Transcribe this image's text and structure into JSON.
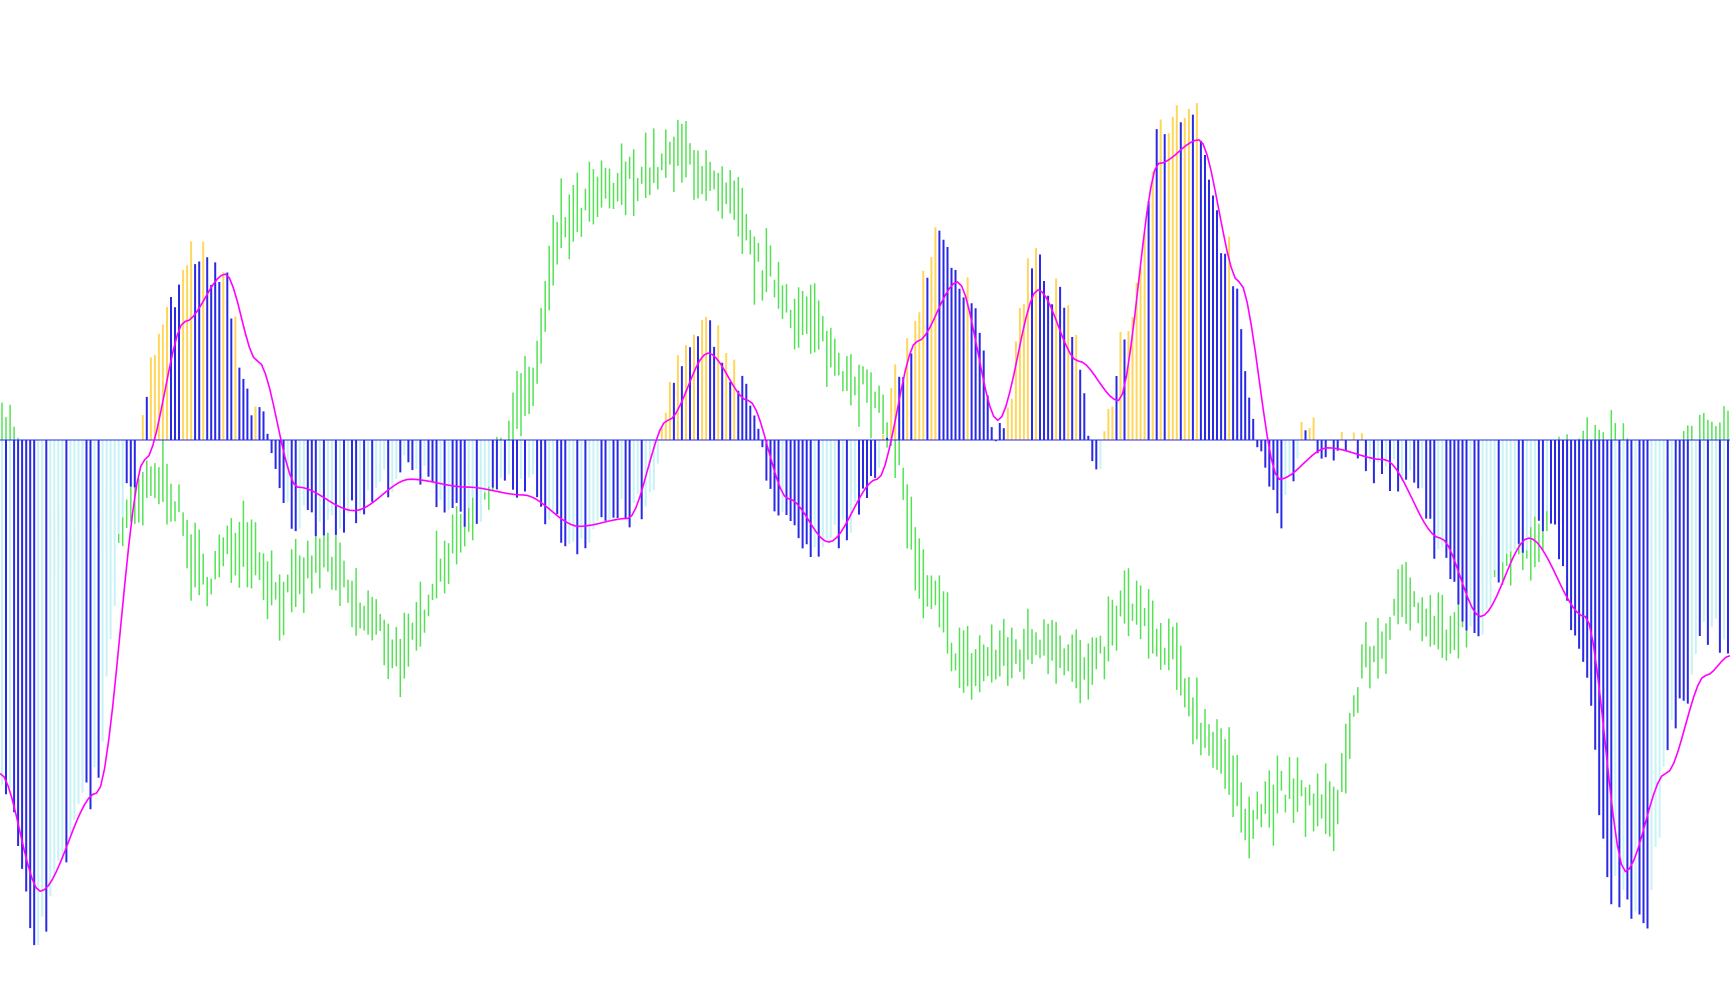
{
  "colors": {
    "background": "#ffffff",
    "hist_rising_positive": "#ffd65c",
    "hist_falling_positive": "#2a2ae6",
    "hist_rising_negative": "#c8f2f5",
    "hist_falling_negative": "#2a2ae6",
    "signal_line": "#ff00ff",
    "price_bars": "#54e254",
    "zero_line": "#2a2ae6"
  },
  "chart_data": {
    "type": "bar",
    "title": "",
    "xlabel": "",
    "ylabel": "",
    "grid": false,
    "legend": "none",
    "bar_count": 430,
    "ylim": [
      -1.3,
      1.0
    ],
    "zero_value": 0,
    "histogram_keypoints": [
      [
        0,
        -0.85
      ],
      [
        8,
        -1.25
      ],
      [
        22,
        -0.9
      ],
      [
        32,
        -0.1
      ],
      [
        40,
        0.3
      ],
      [
        48,
        0.48
      ],
      [
        55,
        0.4
      ],
      [
        62,
        0.1
      ],
      [
        72,
        -0.2
      ],
      [
        85,
        -0.2
      ],
      [
        100,
        -0.08
      ],
      [
        115,
        -0.18
      ],
      [
        130,
        -0.12
      ],
      [
        142,
        -0.26
      ],
      [
        150,
        -0.2
      ],
      [
        160,
        -0.18
      ],
      [
        168,
        0.2
      ],
      [
        176,
        0.28
      ],
      [
        184,
        0.15
      ],
      [
        192,
        -0.15
      ],
      [
        200,
        -0.3
      ],
      [
        208,
        -0.25
      ],
      [
        216,
        -0.1
      ],
      [
        224,
        0.2
      ],
      [
        232,
        0.5
      ],
      [
        240,
        0.4
      ],
      [
        248,
        0.0
      ],
      [
        256,
        0.45
      ],
      [
        264,
        0.35
      ],
      [
        272,
        -0.05
      ],
      [
        280,
        0.3
      ],
      [
        288,
        0.8
      ],
      [
        296,
        0.85
      ],
      [
        304,
        0.5
      ],
      [
        312,
        0.0
      ],
      [
        318,
        -0.2
      ],
      [
        324,
        0.05
      ],
      [
        330,
        -0.03
      ],
      [
        336,
        0.0
      ],
      [
        342,
        -0.1
      ],
      [
        350,
        -0.08
      ],
      [
        358,
        -0.3
      ],
      [
        366,
        -0.52
      ],
      [
        374,
        -0.3
      ],
      [
        384,
        -0.2
      ],
      [
        392,
        -0.5
      ],
      [
        400,
        -1.15
      ],
      [
        408,
        -1.25
      ],
      [
        416,
        -0.7
      ],
      [
        424,
        -0.5
      ],
      [
        430,
        -0.5
      ]
    ],
    "signal_keypoints": [
      [
        0,
        -0.85
      ],
      [
        10,
        -1.15
      ],
      [
        24,
        -0.9
      ],
      [
        36,
        -0.05
      ],
      [
        46,
        0.3
      ],
      [
        56,
        0.42
      ],
      [
        64,
        0.2
      ],
      [
        74,
        -0.12
      ],
      [
        88,
        -0.18
      ],
      [
        102,
        -0.1
      ],
      [
        116,
        -0.12
      ],
      [
        130,
        -0.14
      ],
      [
        144,
        -0.22
      ],
      [
        156,
        -0.2
      ],
      [
        166,
        0.05
      ],
      [
        176,
        0.22
      ],
      [
        186,
        0.1
      ],
      [
        196,
        -0.15
      ],
      [
        206,
        -0.26
      ],
      [
        218,
        -0.1
      ],
      [
        228,
        0.25
      ],
      [
        238,
        0.4
      ],
      [
        248,
        0.05
      ],
      [
        258,
        0.38
      ],
      [
        268,
        0.2
      ],
      [
        278,
        0.1
      ],
      [
        288,
        0.7
      ],
      [
        298,
        0.76
      ],
      [
        308,
        0.4
      ],
      [
        318,
        -0.1
      ],
      [
        330,
        -0.02
      ],
      [
        344,
        -0.05
      ],
      [
        358,
        -0.25
      ],
      [
        368,
        -0.45
      ],
      [
        380,
        -0.25
      ],
      [
        394,
        -0.45
      ],
      [
        404,
        -1.1
      ],
      [
        414,
        -0.85
      ],
      [
        424,
        -0.6
      ],
      [
        430,
        -0.55
      ]
    ],
    "price_keypoints": [
      [
        0,
        0.05
      ],
      [
        10,
        -0.3
      ],
      [
        20,
        -0.25
      ],
      [
        30,
        -0.2
      ],
      [
        40,
        -0.1
      ],
      [
        50,
        -0.35
      ],
      [
        60,
        -0.25
      ],
      [
        70,
        -0.4
      ],
      [
        80,
        -0.3
      ],
      [
        90,
        -0.45
      ],
      [
        100,
        -0.55
      ],
      [
        110,
        -0.3
      ],
      [
        120,
        -0.1
      ],
      [
        130,
        0.1
      ],
      [
        140,
        0.55
      ],
      [
        150,
        0.62
      ],
      [
        160,
        0.68
      ],
      [
        170,
        0.72
      ],
      [
        180,
        0.6
      ],
      [
        190,
        0.42
      ],
      [
        200,
        0.3
      ],
      [
        210,
        0.18
      ],
      [
        220,
        0.05
      ],
      [
        230,
        -0.4
      ],
      [
        240,
        -0.58
      ],
      [
        250,
        -0.55
      ],
      [
        260,
        -0.5
      ],
      [
        270,
        -0.6
      ],
      [
        280,
        -0.42
      ],
      [
        290,
        -0.55
      ],
      [
        300,
        -0.75
      ],
      [
        310,
        -0.95
      ],
      [
        320,
        -0.9
      ],
      [
        330,
        -0.95
      ],
      [
        340,
        -0.55
      ],
      [
        350,
        -0.4
      ],
      [
        360,
        -0.5
      ],
      [
        370,
        -0.3
      ],
      [
        380,
        -0.25
      ],
      [
        390,
        -0.05
      ],
      [
        400,
        0.0
      ],
      [
        410,
        -0.2
      ],
      [
        420,
        -0.05
      ],
      [
        430,
        0.05
      ]
    ]
  }
}
